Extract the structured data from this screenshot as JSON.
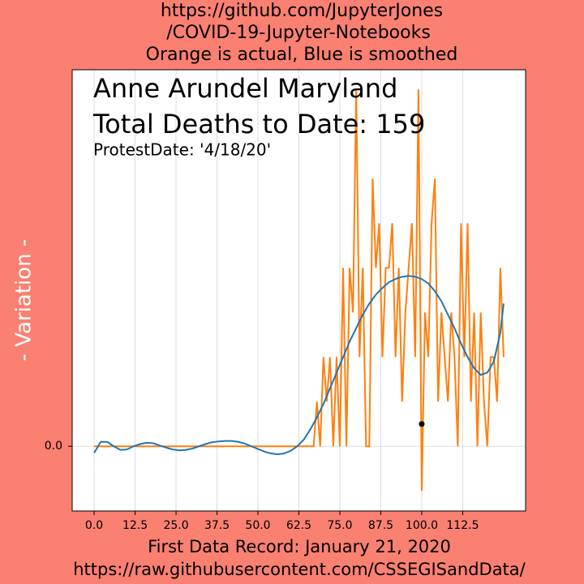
{
  "chart_data": {
    "type": "line",
    "title": [
      "https://github.com/JupyterJones",
      "/COVID-19-Jupyter-Notebooks",
      "Orange is actual, Blue is smoothed"
    ],
    "annotations": [
      {
        "text": "Anne Arundel Maryland",
        "color": "#ff0000"
      },
      {
        "text": "Total Deaths to Date: 159",
        "color": "#ff0000"
      },
      {
        "text": "ProtestDate:  '4/18/20'",
        "color": "#0000ff"
      }
    ],
    "ylabel": "- Variation -",
    "xlabel": "First Data Record: January 21, 2020",
    "source": "https://raw.githubusercontent.com/CSSEGISandData/",
    "xlim": [
      -6.7,
      131.7
    ],
    "ylim": [
      -1.45,
      8.44
    ],
    "xticks": [
      {
        "value": 0,
        "label": "0.0"
      },
      12.5,
      {
        "value": 25,
        "label": "25.0"
      },
      37.5,
      {
        "value": 50,
        "label": "50.0"
      },
      62.5,
      {
        "value": 75,
        "label": "75.0"
      },
      87.5,
      {
        "value": 100,
        "label": "100.0"
      },
      112.5
    ],
    "yticks": [
      {
        "value": 0,
        "label": "0.0"
      }
    ],
    "grid": true,
    "series": [
      {
        "name": "actual",
        "color": "#ff7f0e",
        "x": [
          0,
          67,
          68,
          69,
          70,
          71,
          72,
          73,
          74,
          75,
          76,
          77,
          78,
          79,
          80,
          81,
          82,
          83,
          84,
          85,
          86,
          87,
          88,
          89,
          90,
          91,
          92,
          93,
          94,
          95,
          96,
          97,
          98,
          99,
          100,
          101,
          102,
          103,
          104,
          105,
          106,
          107,
          108,
          109,
          110,
          111,
          112,
          113,
          114,
          115,
          116,
          117,
          118,
          119,
          120,
          121,
          122,
          123,
          124,
          125
        ],
        "values": [
          0,
          0,
          1,
          0,
          2,
          1,
          2,
          0,
          2,
          0,
          4,
          0,
          4,
          3,
          8,
          2,
          4,
          0,
          0,
          6,
          4,
          5,
          2,
          4,
          4,
          5,
          2,
          4,
          1,
          3,
          4,
          5,
          2,
          8,
          -1,
          3,
          2,
          5,
          6,
          1,
          3,
          2,
          1,
          3,
          2,
          0,
          5,
          2,
          5,
          1,
          3,
          0,
          3,
          1,
          0,
          2,
          2,
          1,
          4,
          2
        ]
      },
      {
        "name": "smoothed",
        "color": "#1f77b4",
        "x": [
          0,
          2,
          4,
          6,
          8,
          10,
          12,
          14,
          16,
          18,
          20,
          22,
          24,
          26,
          28,
          30,
          32,
          34,
          36,
          38,
          40,
          42,
          44,
          46,
          48,
          50,
          52,
          54,
          56,
          58,
          60,
          62,
          64,
          66,
          68,
          70,
          72,
          74,
          76,
          78,
          80,
          82,
          84,
          86,
          88,
          90,
          92,
          94,
          96,
          98,
          100,
          102,
          104,
          106,
          108,
          110,
          112,
          114,
          116,
          118,
          120,
          122,
          124,
          125
        ],
        "values": [
          -0.15,
          0.1,
          0.1,
          0.0,
          -0.08,
          -0.07,
          0.0,
          0.05,
          0.08,
          0.07,
          0.02,
          -0.03,
          -0.07,
          -0.09,
          -0.08,
          -0.05,
          0.0,
          0.05,
          0.09,
          0.11,
          0.12,
          0.12,
          0.1,
          0.06,
          0.0,
          -0.06,
          -0.12,
          -0.16,
          -0.18,
          -0.16,
          -0.1,
          0.0,
          0.15,
          0.38,
          0.65,
          0.95,
          1.3,
          1.65,
          2.0,
          2.35,
          2.65,
          2.95,
          3.2,
          3.4,
          3.55,
          3.68,
          3.75,
          3.8,
          3.82,
          3.8,
          3.75,
          3.65,
          3.48,
          3.25,
          2.95,
          2.65,
          2.3,
          2.0,
          1.75,
          1.6,
          1.65,
          1.9,
          2.55,
          3.2
        ]
      }
    ],
    "point": {
      "x": 100,
      "y": 0.5,
      "color": "#000000"
    }
  }
}
